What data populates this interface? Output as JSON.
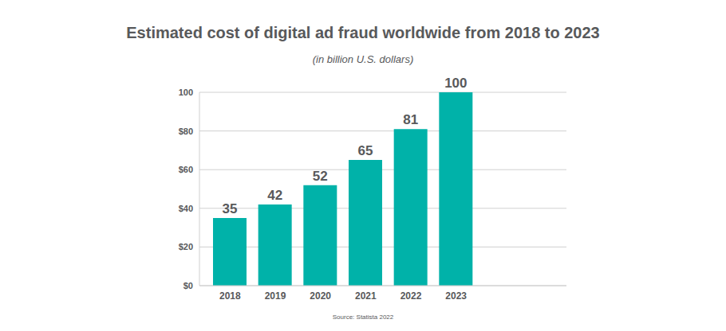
{
  "chart_data": {
    "type": "bar",
    "title": "Estimated cost of digital ad fraud worldwide from 2018 to 2023",
    "subtitle": "(in billion U.S. dollars)",
    "source": "Source: Statista 2022",
    "categories": [
      "2018",
      "2019",
      "2020",
      "2021",
      "2022",
      "2023"
    ],
    "values": [
      35,
      42,
      52,
      65,
      81,
      100
    ],
    "color": "#00b2a9",
    "ylim": [
      0,
      100
    ],
    "yticks": [
      {
        "value": 0,
        "label": "$0"
      },
      {
        "value": 20,
        "label": "$20"
      },
      {
        "value": 40,
        "label": "$40"
      },
      {
        "value": 60,
        "label": "$60"
      },
      {
        "value": 80,
        "label": "$80"
      },
      100
    ],
    "grid": true,
    "data_labels": true
  }
}
